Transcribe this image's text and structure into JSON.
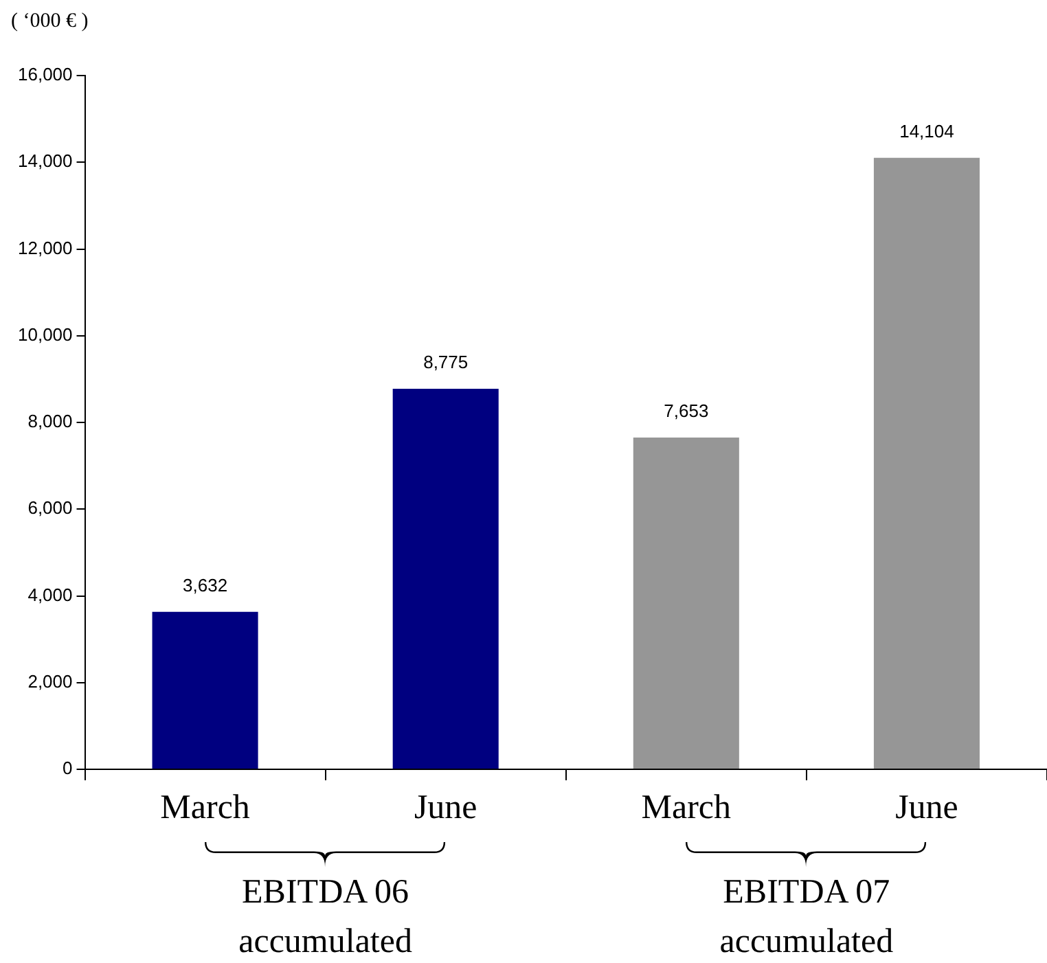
{
  "chart_data": {
    "type": "bar",
    "ylabel": "( ‘000 € )",
    "categories": [
      "March",
      "June",
      "March",
      "June"
    ],
    "values": [
      3632,
      8775,
      7653,
      14104
    ],
    "value_labels": [
      "3,632",
      "8,775",
      "7,653",
      "14,104"
    ],
    "colors": [
      "#000080",
      "#000080",
      "#969696",
      "#969696"
    ],
    "ylim": [
      0,
      16000
    ],
    "yticks": [
      {
        "value": 0,
        "label": "0"
      },
      {
        "value": 2000,
        "label": "2,000"
      },
      {
        "value": 4000,
        "label": "4,000"
      },
      {
        "value": 6000,
        "label": "6,000"
      },
      {
        "value": 8000,
        "label": "8,000"
      },
      {
        "value": 10000,
        "label": "10,000"
      },
      {
        "value": 12000,
        "label": "12,000"
      },
      {
        "value": 14000,
        "label": "14,000"
      },
      {
        "value": 16000,
        "label": "16,000"
      }
    ],
    "grid": false,
    "legend": false,
    "annotations": [
      "EBITDA 06\naccumulated",
      "EBITDA 07\naccumulated"
    ]
  }
}
